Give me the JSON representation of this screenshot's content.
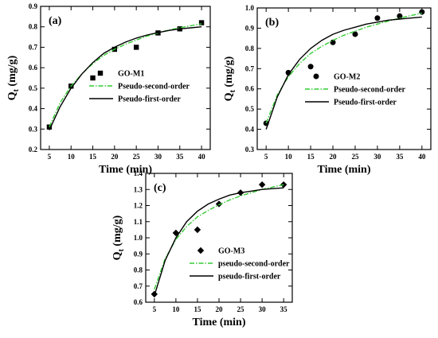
{
  "chart_data": [
    {
      "type": "scatter",
      "panel_label": "(a)",
      "xlabel": "Time (min)",
      "ylabel": "Q",
      "ylabel_sub": "t",
      "ylabel_unit": " (mg/g)",
      "xlim": [
        3,
        42
      ],
      "ylim": [
        0.2,
        0.9
      ],
      "xticks": [
        5,
        10,
        15,
        20,
        25,
        30,
        35,
        40
      ],
      "yticks": [
        0.2,
        0.3,
        0.4,
        0.5,
        0.6,
        0.7,
        0.8,
        0.9
      ],
      "ytick_decimals": 1,
      "marker": "square",
      "series": [
        {
          "name": "GO-M1",
          "kind": "points",
          "color": "#000000",
          "x": [
            5,
            10,
            15,
            20,
            25,
            30,
            35,
            40
          ],
          "y": [
            0.31,
            0.51,
            0.55,
            0.69,
            0.7,
            0.77,
            0.79,
            0.82
          ]
        },
        {
          "name": "Pseudo-second-order",
          "kind": "line",
          "style": "dashdot",
          "color": "#33cc33",
          "x": [
            5,
            7.5,
            10,
            12.5,
            15,
            17.5,
            20,
            22.5,
            25,
            27.5,
            30,
            32.5,
            35,
            37.5,
            40
          ],
          "y": [
            0.31,
            0.43,
            0.51,
            0.57,
            0.62,
            0.66,
            0.69,
            0.715,
            0.735,
            0.755,
            0.77,
            0.785,
            0.795,
            0.805,
            0.815
          ]
        },
        {
          "name": "Pseudo-first-order",
          "kind": "line",
          "style": "solid",
          "color": "#000000",
          "x": [
            5,
            7.5,
            10,
            12.5,
            15,
            17.5,
            20,
            22.5,
            25,
            27.5,
            30,
            32.5,
            35,
            37.5,
            40
          ],
          "y": [
            0.295,
            0.41,
            0.5,
            0.57,
            0.625,
            0.67,
            0.7,
            0.725,
            0.745,
            0.76,
            0.772,
            0.782,
            0.79,
            0.795,
            0.8
          ]
        }
      ],
      "legend": "center-right"
    },
    {
      "type": "scatter",
      "panel_label": "(b)",
      "xlabel": "Time (min)",
      "ylabel": "Q",
      "ylabel_sub": "t",
      "ylabel_unit": " (mg/g)",
      "xlim": [
        3,
        42
      ],
      "ylim": [
        0.3,
        1.0
      ],
      "xticks": [
        5,
        10,
        15,
        20,
        25,
        30,
        35,
        40
      ],
      "yticks": [
        0.3,
        0.4,
        0.5,
        0.6,
        0.7,
        0.8,
        0.9,
        1.0
      ],
      "ytick_decimals": 1,
      "marker": "circle",
      "series": [
        {
          "name": "GO-M2",
          "kind": "points",
          "color": "#000000",
          "x": [
            5,
            10,
            15,
            20,
            25,
            30,
            35,
            40
          ],
          "y": [
            0.43,
            0.68,
            0.71,
            0.83,
            0.87,
            0.95,
            0.96,
            0.98
          ]
        },
        {
          "name": "Pseudo-second-order",
          "kind": "line",
          "style": "dashdot",
          "color": "#33cc33",
          "x": [
            5,
            7.5,
            10,
            12.5,
            15,
            17.5,
            20,
            22.5,
            25,
            27.5,
            30,
            32.5,
            35,
            37.5,
            40
          ],
          "y": [
            0.43,
            0.57,
            0.66,
            0.725,
            0.775,
            0.81,
            0.84,
            0.865,
            0.885,
            0.905,
            0.92,
            0.935,
            0.95,
            0.962,
            0.975
          ]
        },
        {
          "name": "Pseudo-first-order",
          "kind": "line",
          "style": "solid",
          "color": "#000000",
          "x": [
            5,
            7.5,
            10,
            12.5,
            15,
            17.5,
            20,
            22.5,
            25,
            27.5,
            30,
            32.5,
            35,
            37.5,
            40
          ],
          "y": [
            0.4,
            0.56,
            0.67,
            0.745,
            0.8,
            0.84,
            0.87,
            0.89,
            0.905,
            0.92,
            0.93,
            0.94,
            0.945,
            0.95,
            0.955
          ]
        }
      ],
      "legend": "center-right"
    },
    {
      "type": "scatter",
      "panel_label": "(c)",
      "xlabel": "Time (min)",
      "ylabel": "Q",
      "ylabel_sub": "t",
      "ylabel_unit": " (mg/g)",
      "xlim": [
        3,
        37
      ],
      "ylim": [
        0.6,
        1.4
      ],
      "xticks": [
        5,
        10,
        15,
        20,
        25,
        30,
        35
      ],
      "yticks": [
        0.6,
        0.7,
        0.8,
        0.9,
        1.0,
        1.1,
        1.2,
        1.3,
        1.4
      ],
      "ytick_decimals": 1,
      "marker": "diamond",
      "series": [
        {
          "name": "GO-M3",
          "kind": "points",
          "color": "#000000",
          "x": [
            5,
            10,
            15,
            20,
            25,
            30,
            35
          ],
          "y": [
            0.65,
            1.03,
            1.05,
            1.21,
            1.28,
            1.33,
            1.33
          ]
        },
        {
          "name": "pseudo-second-order",
          "kind": "line",
          "style": "dashdot",
          "color": "#33cc33",
          "x": [
            5,
            7.5,
            10,
            12.5,
            15,
            17.5,
            20,
            22.5,
            25,
            27.5,
            30,
            32.5,
            35
          ],
          "y": [
            0.68,
            0.87,
            0.99,
            1.07,
            1.13,
            1.17,
            1.205,
            1.235,
            1.26,
            1.28,
            1.3,
            1.315,
            1.33
          ]
        },
        {
          "name": "pseudo-first-order",
          "kind": "line",
          "style": "solid",
          "color": "#000000",
          "x": [
            5,
            7.5,
            10,
            12.5,
            15,
            17.5,
            20,
            22.5,
            25,
            27.5,
            30,
            32.5,
            35
          ],
          "y": [
            0.64,
            0.86,
            1.0,
            1.1,
            1.165,
            1.21,
            1.24,
            1.265,
            1.28,
            1.29,
            1.3,
            1.305,
            1.31
          ]
        }
      ],
      "legend": "bottom-right"
    }
  ]
}
